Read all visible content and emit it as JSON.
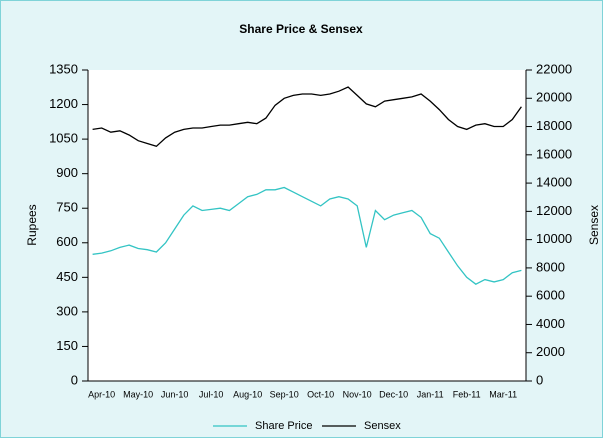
{
  "chart_data": {
    "type": "line",
    "title": "Share Price & Sensex",
    "ylabel": "Rupees",
    "y2label": "Sensex",
    "categories": [
      null,
      "Apr-10",
      null,
      null,
      null,
      "May-10",
      null,
      null,
      null,
      "Jun-10",
      null,
      null,
      null,
      "Jul-10",
      null,
      null,
      null,
      "Aug-10",
      null,
      null,
      null,
      "Sep-10",
      null,
      null,
      null,
      "Oct-10",
      null,
      null,
      null,
      "Nov-10",
      null,
      null,
      null,
      "Dec-10",
      null,
      null,
      null,
      "Jan-11",
      null,
      null,
      null,
      "Feb-11",
      null,
      null,
      null,
      "Mar-11",
      null,
      null
    ],
    "series": [
      {
        "name": "Share Price",
        "color": "#33c4c4",
        "axis": "y",
        "values": [
          550,
          555,
          565,
          580,
          590,
          575,
          570,
          560,
          600,
          660,
          720,
          760,
          740,
          745,
          750,
          740,
          770,
          800,
          810,
          830,
          830,
          840,
          820,
          800,
          780,
          760,
          790,
          800,
          790,
          760,
          580,
          740,
          700,
          720,
          730,
          740,
          710,
          640,
          620,
          560,
          500,
          450,
          420,
          440,
          430,
          440,
          470,
          480
        ]
      },
      {
        "name": "Sensex",
        "color": "#000000",
        "axis": "y2",
        "values": [
          17800,
          17900,
          17600,
          17700,
          17400,
          17000,
          16800,
          16600,
          17200,
          17600,
          17800,
          17900,
          17900,
          18000,
          18100,
          18100,
          18200,
          18300,
          18200,
          18600,
          19500,
          20000,
          20200,
          20300,
          20300,
          20200,
          20300,
          20500,
          20800,
          20200,
          19600,
          19400,
          19800,
          19900,
          20000,
          20100,
          20300,
          19800,
          19200,
          18500,
          18000,
          17800,
          18100,
          18200,
          18000,
          18000,
          18500,
          19400
        ]
      }
    ],
    "ylim": [
      0,
      1350
    ],
    "yticks": [
      0,
      150,
      300,
      450,
      600,
      750,
      900,
      1050,
      1200,
      1350
    ],
    "y2lim": [
      0,
      22000
    ],
    "y2ticks": [
      0,
      2000,
      4000,
      6000,
      8000,
      10000,
      12000,
      14000,
      16000,
      18000,
      20000,
      22000
    ],
    "legend": "bottom"
  }
}
